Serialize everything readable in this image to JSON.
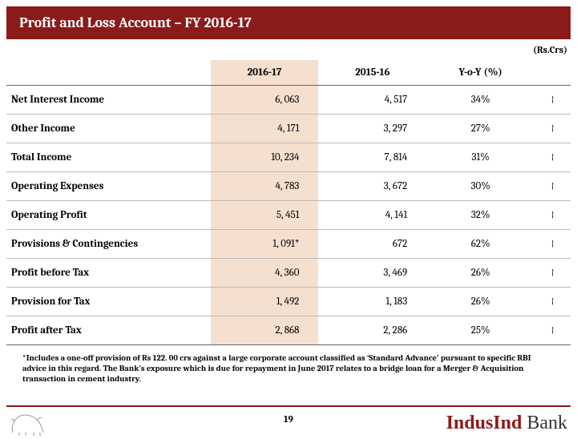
{
  "title": "Profit and Loss Account – FY 2016-17",
  "unit_label": "(Rs.Crs)",
  "columns": {
    "rowlabel": "",
    "a": "2016-17",
    "b": "2015-16",
    "c": "Y-o-Y (%)"
  },
  "rows": [
    {
      "label": "Net Interest Income",
      "a": "6, 063",
      "b": "4, 517",
      "c": "34%",
      "arrow": "↑"
    },
    {
      "label": "Other Income",
      "a": "4, 171",
      "b": "3, 297",
      "c": "27%",
      "arrow": "↑"
    },
    {
      "label": "Total Income",
      "a": "10, 234",
      "b": "7, 814",
      "c": "31%",
      "arrow": "↑"
    },
    {
      "label": "Operating Expenses",
      "a": "4, 783",
      "b": "3, 672",
      "c": "30%",
      "arrow": "↑"
    },
    {
      "label": "Operating Profit",
      "a": "5, 451",
      "b": "4, 141",
      "c": "32%",
      "arrow": "↑"
    },
    {
      "label": "Provisions & Contingencies",
      "a": "1, 091*",
      "b": "672",
      "c": "62%",
      "arrow": "↑"
    },
    {
      "label": "Profit before Tax",
      "a": "4, 360",
      "b": "3, 469",
      "c": "26%",
      "arrow": "↑"
    },
    {
      "label": "Provision for Tax",
      "a": "1, 492",
      "b": "1, 183",
      "c": "26%",
      "arrow": "↑"
    },
    {
      "label": "Profit after Tax",
      "a": "2, 868",
      "b": "2, 286",
      "c": "25%",
      "arrow": "↑"
    }
  ],
  "footnote": "*Includes a one-off provision of Rs 122. 00 crs against a large corporate account classified as ‘Standard Advance’ pursuant to specific RBI advice in this regard. The Bank’s exposure which is due for repayment in June 2017 relates to a bridge loan for a Merger & Acquisition transaction in cement industry.",
  "page_number": "19",
  "brand": {
    "part1": "IndusInd",
    "part2": " Bank"
  },
  "colors": {
    "maroon": "#8b1a1a",
    "col_a_bg": "#f5e0d0",
    "background": "#ffffff"
  }
}
